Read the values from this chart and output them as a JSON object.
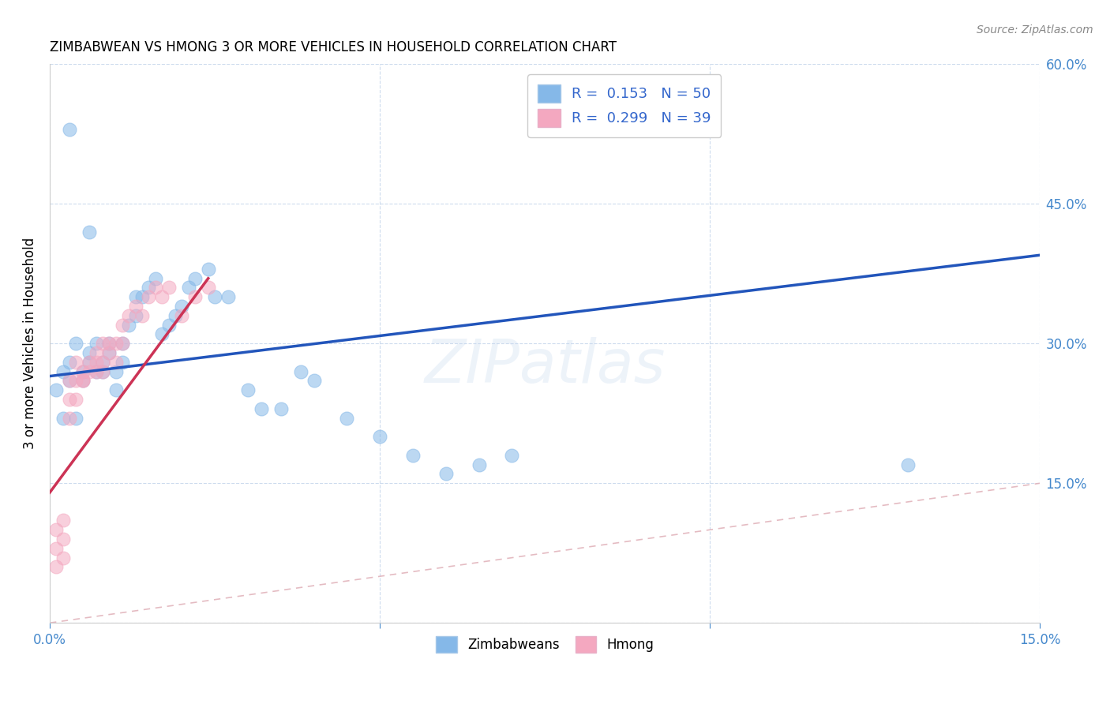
{
  "title": "ZIMBABWEAN VS HMONG 3 OR MORE VEHICLES IN HOUSEHOLD CORRELATION CHART",
  "source": "Source: ZipAtlas.com",
  "ylabel": "3 or more Vehicles in Household",
  "xlim": [
    0.0,
    0.15
  ],
  "ylim": [
    0.0,
    0.6
  ],
  "legend_labels": [
    "Zimbabweans",
    "Hmong"
  ],
  "zimbabwean_R": 0.153,
  "zimbabwean_N": 50,
  "hmong_R": 0.299,
  "hmong_N": 39,
  "blue_color": "#85b8e8",
  "pink_color": "#f4a8c0",
  "trend_blue": "#2255bb",
  "trend_pink": "#cc3355",
  "diagonal_color": "#e0b0b8",
  "watermark": "ZIPatlas",
  "zimbabwean_x": [
    0.001,
    0.002,
    0.002,
    0.003,
    0.003,
    0.004,
    0.004,
    0.005,
    0.005,
    0.006,
    0.006,
    0.007,
    0.007,
    0.008,
    0.008,
    0.009,
    0.009,
    0.01,
    0.01,
    0.011,
    0.011,
    0.012,
    0.013,
    0.013,
    0.014,
    0.015,
    0.016,
    0.017,
    0.018,
    0.019,
    0.02,
    0.021,
    0.022,
    0.024,
    0.025,
    0.027,
    0.03,
    0.032,
    0.035,
    0.038,
    0.04,
    0.045,
    0.05,
    0.055,
    0.06,
    0.065,
    0.07,
    0.13,
    0.003,
    0.006
  ],
  "zimbabwean_y": [
    0.25,
    0.22,
    0.27,
    0.26,
    0.28,
    0.3,
    0.22,
    0.27,
    0.26,
    0.29,
    0.28,
    0.3,
    0.27,
    0.28,
    0.27,
    0.3,
    0.29,
    0.25,
    0.27,
    0.28,
    0.3,
    0.32,
    0.33,
    0.35,
    0.35,
    0.36,
    0.37,
    0.31,
    0.32,
    0.33,
    0.34,
    0.36,
    0.37,
    0.38,
    0.35,
    0.35,
    0.25,
    0.23,
    0.23,
    0.27,
    0.26,
    0.22,
    0.2,
    0.18,
    0.16,
    0.17,
    0.18,
    0.17,
    0.53,
    0.42
  ],
  "hmong_x": [
    0.001,
    0.001,
    0.001,
    0.002,
    0.002,
    0.002,
    0.003,
    0.003,
    0.003,
    0.004,
    0.004,
    0.004,
    0.005,
    0.005,
    0.005,
    0.006,
    0.006,
    0.007,
    0.007,
    0.007,
    0.008,
    0.008,
    0.008,
    0.009,
    0.009,
    0.01,
    0.01,
    0.011,
    0.011,
    0.012,
    0.013,
    0.014,
    0.015,
    0.016,
    0.017,
    0.018,
    0.02,
    0.022,
    0.024
  ],
  "hmong_y": [
    0.06,
    0.08,
    0.1,
    0.07,
    0.09,
    0.11,
    0.22,
    0.24,
    0.26,
    0.24,
    0.26,
    0.28,
    0.26,
    0.27,
    0.26,
    0.27,
    0.28,
    0.28,
    0.29,
    0.27,
    0.28,
    0.3,
    0.27,
    0.29,
    0.3,
    0.28,
    0.3,
    0.3,
    0.32,
    0.33,
    0.34,
    0.33,
    0.35,
    0.36,
    0.35,
    0.36,
    0.33,
    0.35,
    0.36
  ]
}
